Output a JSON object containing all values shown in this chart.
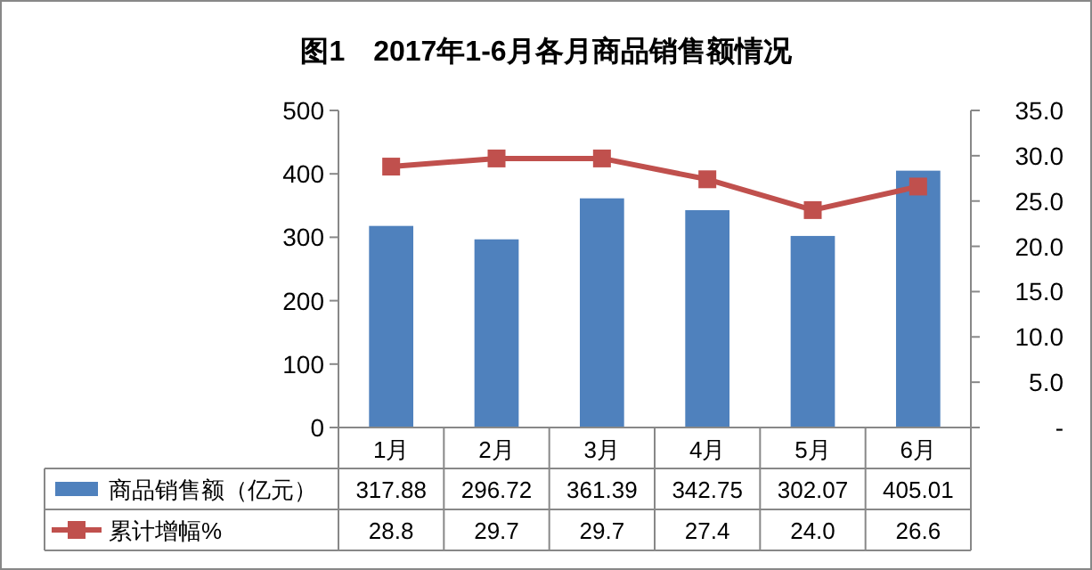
{
  "chart_data": {
    "type": "bar",
    "title": "图1　2017年1-6月各月商品销售额情况",
    "categories": [
      "1月",
      "2月",
      "3月",
      "4月",
      "5月",
      "6月"
    ],
    "series": [
      {
        "name": "商品销售额（亿元）",
        "color": "#4f81bd",
        "values": [
          317.88,
          296.72,
          361.39,
          342.75,
          302.07,
          405.01
        ]
      },
      {
        "name": "累计增幅%",
        "type": "line",
        "axis": "y2",
        "color": "#c0504d",
        "marker": "square",
        "values": [
          28.8,
          29.7,
          29.7,
          27.4,
          24.0,
          26.6
        ],
        "value_labels": [
          "28.8",
          "29.7",
          "29.7",
          "27.4",
          "24.0",
          "26.6"
        ]
      }
    ],
    "ylim": [
      0,
      500
    ],
    "yticks": [
      0,
      100,
      200,
      300,
      400,
      500
    ],
    "y2lim": [
      0,
      35
    ],
    "y2ticks": [
      {
        "value": 0,
        "label": "-"
      },
      {
        "value": 5,
        "label": "5.0"
      },
      {
        "value": 10,
        "label": "10.0"
      },
      {
        "value": 15,
        "label": "15.0"
      },
      {
        "value": 20,
        "label": "20.0"
      },
      {
        "value": 25,
        "label": "25.0"
      },
      {
        "value": 30,
        "label": "30.0"
      },
      {
        "value": 35,
        "label": "35.0"
      }
    ],
    "data_labels": true,
    "legend": "bottom"
  }
}
